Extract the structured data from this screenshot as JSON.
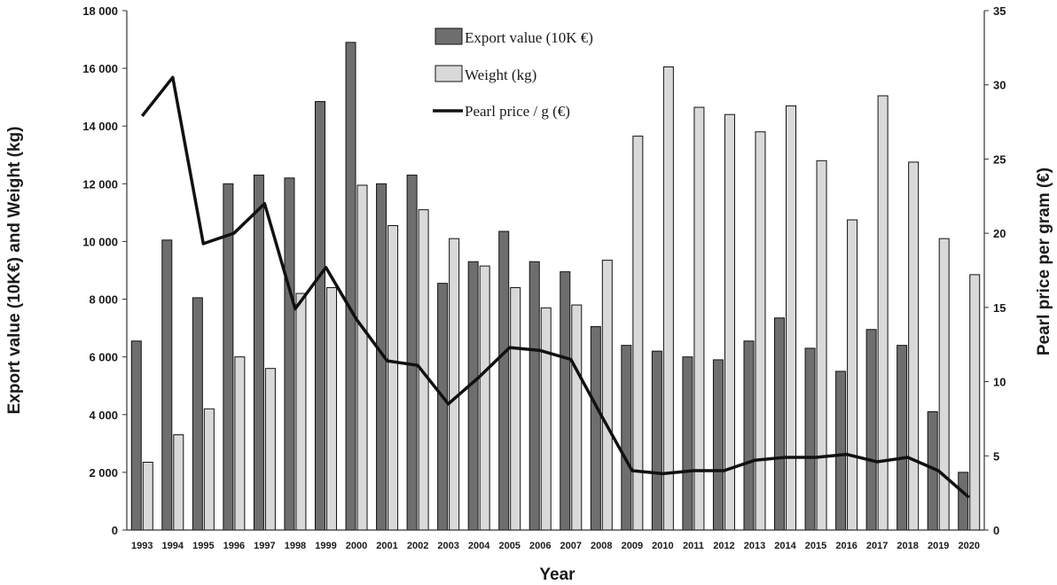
{
  "chart_data": {
    "type": "bar",
    "xlabel": "Year",
    "ylabel_left": "Export value (10K€) and Weight (kg)",
    "ylabel_right": "Pearl price per gram (€)",
    "ylim_left": [
      0,
      18000
    ],
    "ylim_right": [
      0,
      35
    ],
    "yticks_left": [
      "0",
      "2 000",
      "4 000",
      "6 000",
      "8 000",
      "10 000",
      "12 000",
      "14 000",
      "16 000",
      "18 000"
    ],
    "yticks_right": [
      "0",
      "5",
      "10",
      "15",
      "20",
      "25",
      "30",
      "35"
    ],
    "grid": false,
    "legend_position": "top-center",
    "categories": [
      "1993",
      "1994",
      "1995",
      "1996",
      "1997",
      "1998",
      "1999",
      "2000",
      "2001",
      "2002",
      "2003",
      "2004",
      "2005",
      "2006",
      "2007",
      "2008",
      "2009",
      "2010",
      "2011",
      "2012",
      "2013",
      "2014",
      "2015",
      "2016",
      "2017",
      "2018",
      "2019",
      "2020"
    ],
    "series": [
      {
        "name": "Export value (10K €)",
        "kind": "bar",
        "axis": "left",
        "color": "#6e6e6e",
        "values": [
          6550,
          10050,
          8050,
          12000,
          12300,
          12200,
          14850,
          16900,
          12000,
          12300,
          8550,
          9300,
          10350,
          9300,
          8950,
          7050,
          6400,
          6200,
          6000,
          5900,
          6550,
          7350,
          6300,
          5500,
          6950,
          6400,
          4100,
          2000
        ]
      },
      {
        "name": "Weight (kg)",
        "kind": "bar",
        "axis": "left",
        "color": "#d9d9d9",
        "values": [
          2350,
          3300,
          4200,
          6000,
          5600,
          8200,
          8400,
          11950,
          10550,
          11100,
          10100,
          9150,
          8400,
          7700,
          7800,
          9350,
          13650,
          16050,
          14650,
          14400,
          13800,
          14700,
          12800,
          10750,
          15050,
          12750,
          10100,
          8850
        ]
      },
      {
        "name": "Pearl price / g (€)",
        "kind": "line",
        "axis": "right",
        "color": "#111111",
        "values": [
          27.9,
          30.5,
          19.3,
          20.0,
          22.0,
          14.9,
          17.7,
          14.2,
          11.4,
          11.1,
          8.5,
          10.3,
          12.3,
          12.1,
          11.5,
          7.7,
          4.0,
          3.8,
          4.0,
          4.0,
          4.7,
          4.9,
          4.9,
          5.1,
          4.6,
          4.9,
          4.0,
          2.2
        ]
      }
    ]
  }
}
